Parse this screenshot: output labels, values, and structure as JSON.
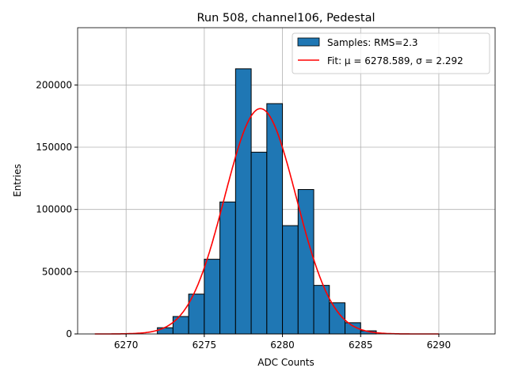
{
  "chart_data": {
    "type": "bar",
    "title": "Run 508, channel106, Pedestal",
    "xlabel": "ADC Counts",
    "ylabel": "Entries",
    "xlim": [
      6266.9,
      6293.6
    ],
    "ylim": [
      0,
      246000
    ],
    "grid": true,
    "legend_placement": "top-right",
    "xticks": [
      6270,
      6275,
      6280,
      6285,
      6290
    ],
    "yticks": [
      0,
      50000,
      100000,
      150000,
      200000
    ],
    "bin_edges": [
      6272,
      6273,
      6274,
      6275,
      6276,
      6277,
      6278,
      6279,
      6280,
      6281,
      6282,
      6283,
      6284,
      6285,
      6286
    ],
    "values": [
      5000,
      14000,
      32000,
      60000,
      106000,
      213000,
      146000,
      185000,
      87000,
      116000,
      39000,
      25000,
      9000,
      2500
    ],
    "bar_color": "#1f77b4",
    "series": [
      {
        "name": "Samples: RMS=2.3",
        "kind": "histogram"
      },
      {
        "name": "Fit: μ = 6278.589, σ = 2.292",
        "kind": "gaussian",
        "mu": 6278.589,
        "sigma": 2.292,
        "amplitude": 181000,
        "x_range": [
          6268,
          6290
        ],
        "color": "#ff0000"
      }
    ]
  }
}
